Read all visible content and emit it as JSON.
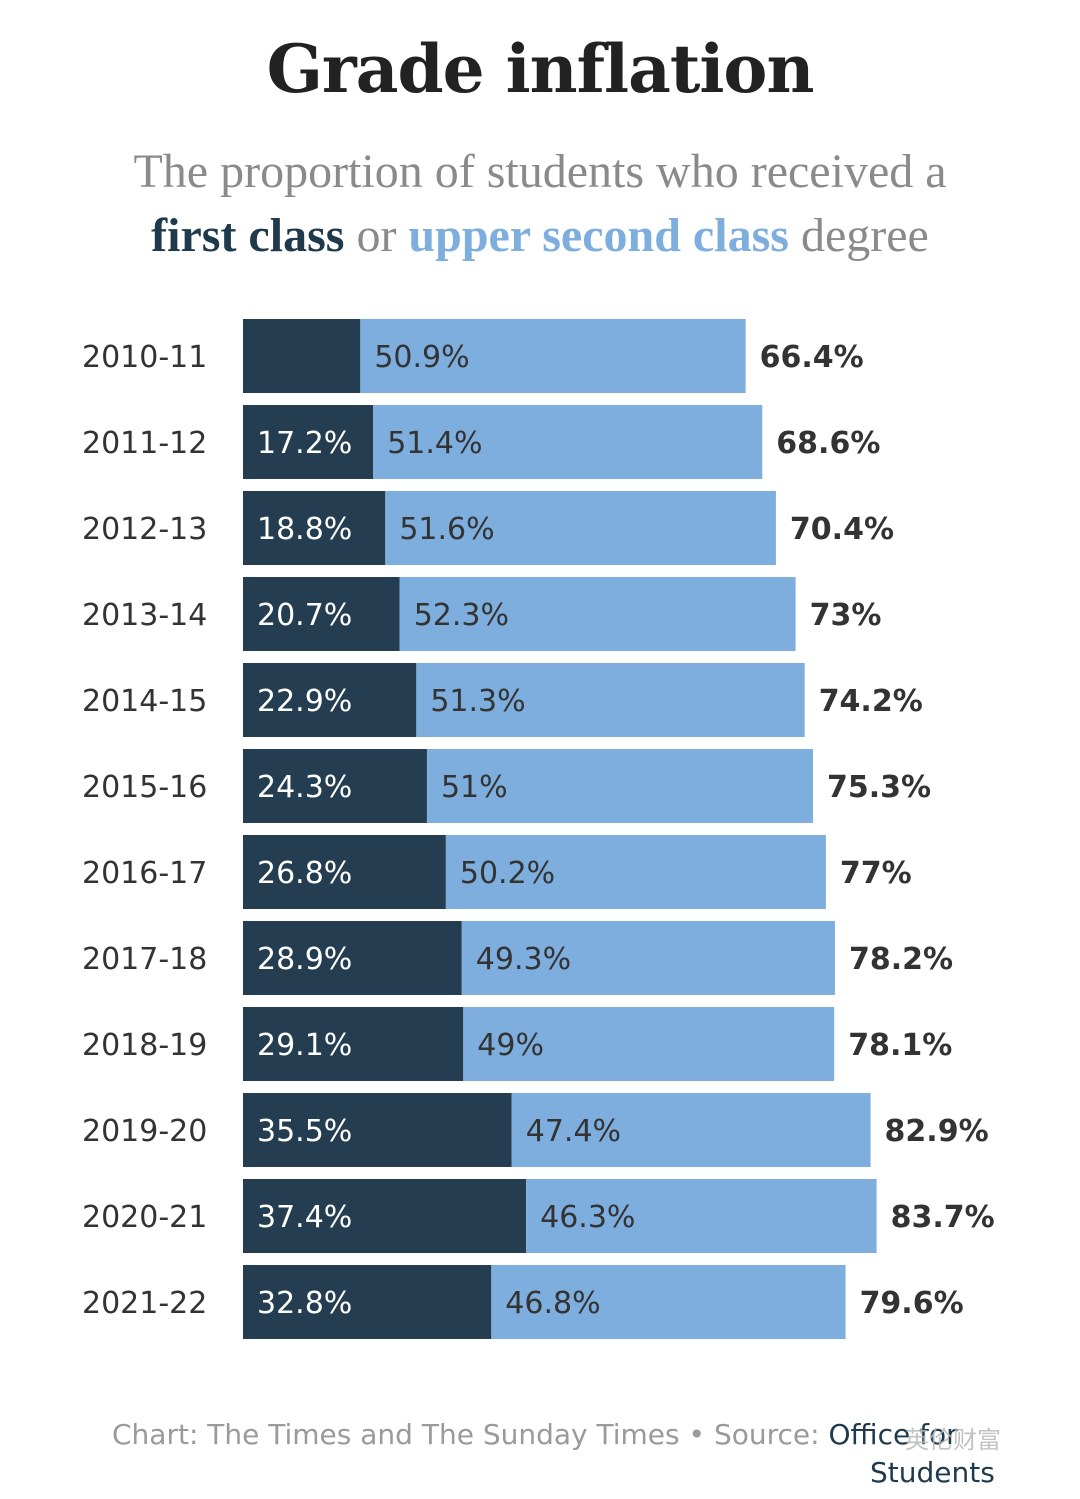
{
  "title": "Grade inflation",
  "subtitle": {
    "part1": "The proportion of students who received a",
    "first": "first class",
    "or": "or",
    "upper": "upper second class",
    "part2": "degree"
  },
  "colors": {
    "first_class": "#243d50",
    "upper_second": "#7eaedd",
    "text_light": "#ffffff",
    "text_dark": "#333333"
  },
  "chart_data": {
    "type": "bar",
    "orientation": "horizontal",
    "stacked": true,
    "categories": [
      "2010-11",
      "2011-12",
      "2012-13",
      "2013-14",
      "2014-15",
      "2015-16",
      "2016-17",
      "2017-18",
      "2018-19",
      "2019-20",
      "2020-21",
      "2021-22"
    ],
    "series": [
      {
        "name": "first class",
        "values": [
          15.5,
          17.2,
          18.8,
          20.7,
          22.9,
          24.3,
          26.8,
          28.9,
          29.1,
          35.5,
          37.4,
          32.8
        ],
        "labels": [
          "",
          "17.2%",
          "18.8%",
          "20.7%",
          "22.9%",
          "24.3%",
          "26.8%",
          "28.9%",
          "29.1%",
          "35.5%",
          "37.4%",
          "32.8%"
        ]
      },
      {
        "name": "upper second class",
        "values": [
          50.9,
          51.4,
          51.6,
          52.3,
          51.3,
          51.0,
          50.2,
          49.3,
          49.0,
          47.4,
          46.3,
          46.8
        ],
        "labels": [
          "50.9%",
          "51.4%",
          "51.6%",
          "52.3%",
          "51.3%",
          "51%",
          "50.2%",
          "49.3%",
          "49%",
          "47.4%",
          "46.3%",
          "46.8%"
        ]
      }
    ],
    "totals": [
      "66.4%",
      "68.6%",
      "70.4%",
      "73%",
      "74.2%",
      "75.3%",
      "77%",
      "78.2%",
      "78.1%",
      "82.9%",
      "83.7%",
      "79.6%"
    ],
    "xlim": [
      0,
      100
    ],
    "grid": false,
    "legend": "none"
  },
  "footer": {
    "chart_credit": "Chart: The Times and The Sunday Times",
    "separator": "•",
    "source_label": "Source:",
    "source_link": "Office for",
    "source_link2": "Students"
  },
  "watermark": "英伦财富"
}
